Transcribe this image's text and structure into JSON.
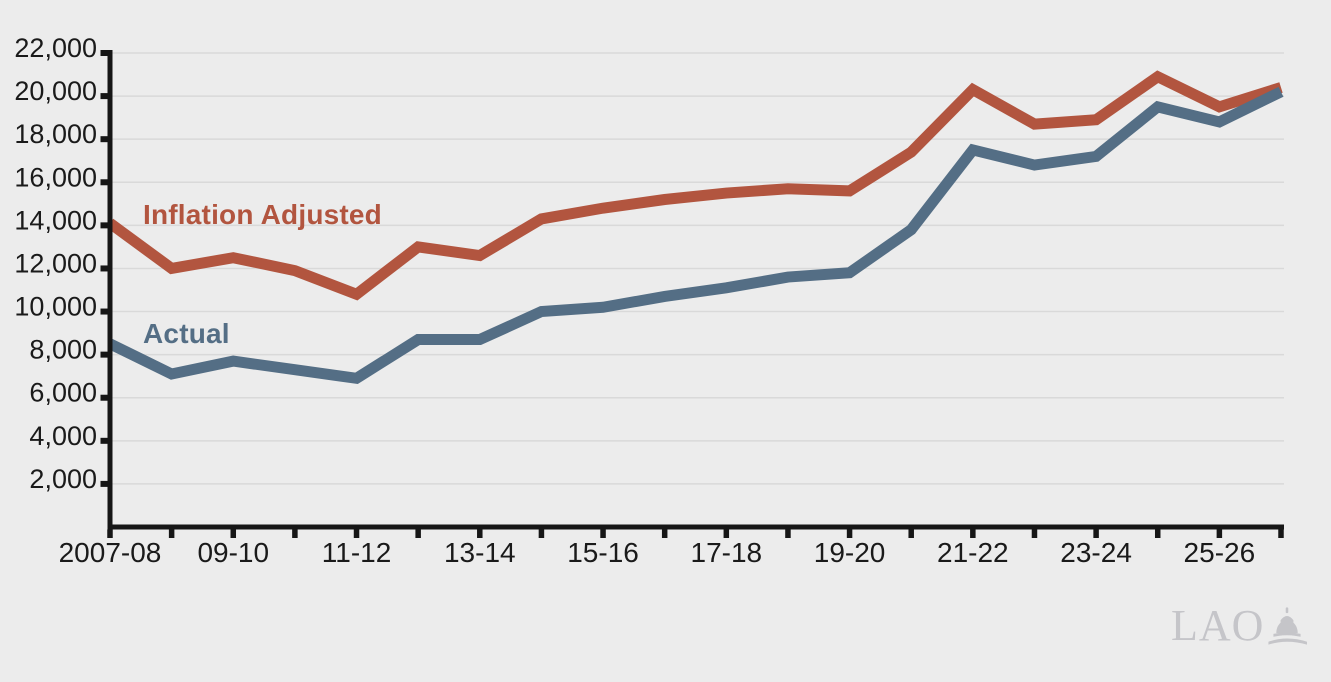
{
  "chart_data": {
    "type": "line",
    "title": "",
    "xlabel": "",
    "ylabel": "",
    "categories": [
      "2007-08",
      "08-09",
      "09-10",
      "10-11",
      "11-12",
      "12-13",
      "13-14",
      "14-15",
      "15-16",
      "16-17",
      "17-18",
      "18-19",
      "19-20",
      "20-21",
      "21-22",
      "22-23",
      "23-24",
      "24-25",
      "25-26",
      "26-27"
    ],
    "x_tick_labels_shown": [
      "2007-08",
      "09-10",
      "11-12",
      "13-14",
      "15-16",
      "17-18",
      "19-20",
      "21-22",
      "23-24",
      "25-26"
    ],
    "x_label_every": 2,
    "series": [
      {
        "name": "Inflation Adjusted",
        "color": "#b2553f",
        "values": [
          14100,
          12000,
          12500,
          11900,
          10800,
          13000,
          12600,
          14300,
          14800,
          15200,
          15500,
          15700,
          15600,
          17400,
          20300,
          18700,
          18900,
          20900,
          19500,
          20400
        ]
      },
      {
        "name": "Actual",
        "color": "#546e85",
        "values": [
          8500,
          7100,
          7700,
          7300,
          6900,
          8700,
          8700,
          10000,
          10200,
          10700,
          11100,
          11600,
          11800,
          13800,
          17500,
          16800,
          17200,
          19500,
          18800,
          20200
        ]
      }
    ],
    "ylim": [
      0,
      22000
    ],
    "yticks": [
      2000,
      4000,
      6000,
      8000,
      10000,
      12000,
      14000,
      16000,
      18000,
      20000,
      22000
    ],
    "ytick_labels": [
      "2,000",
      "4,000",
      "6,000",
      "8,000",
      "10,000",
      "12,000",
      "14,000",
      "16,000",
      "18,000",
      "20,000",
      "22,000"
    ],
    "grid": true,
    "legend_position": "inline-series-labels",
    "line_width": 11
  },
  "colors": {
    "background": "#ececec",
    "gridline": "#d9d9d9",
    "axis": "#161616",
    "tick_text": "#1a1a1a",
    "logo": "#c5c5c9"
  },
  "branding": {
    "logo_text": "LAO",
    "logo_icon": "capitol-dome-icon"
  }
}
